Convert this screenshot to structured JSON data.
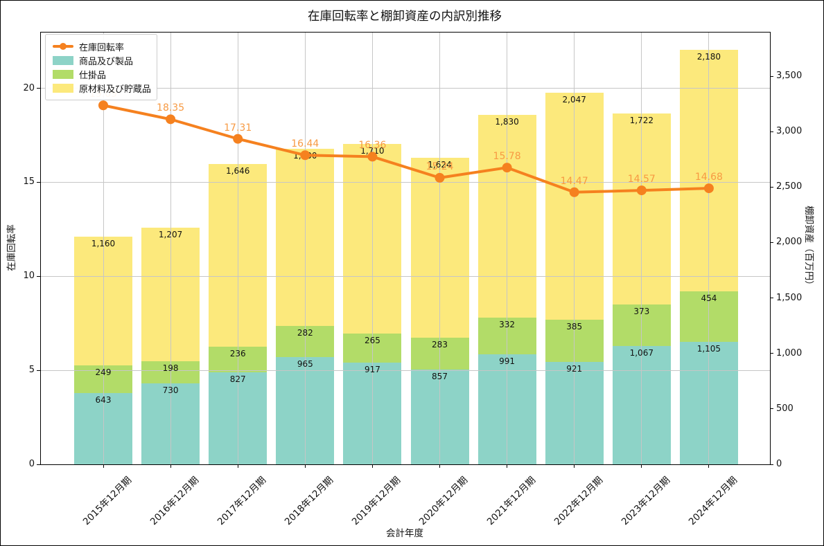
{
  "chart_data": {
    "type": "bar",
    "stacked": true,
    "title": "在庫回転率と棚卸資産の内訳別推移",
    "xlabel": "会計年度",
    "categories": [
      "2015年12月期",
      "2016年12月期",
      "2017年12月期",
      "2018年12月期",
      "2019年12月期",
      "2020年12月期",
      "2021年12月期",
      "2022年12月期",
      "2023年12月期",
      "2024年12月期"
    ],
    "series": [
      {
        "name": "商品及び製品",
        "type": "bar",
        "axis": "right",
        "color": "#8dd3c7",
        "values": [
          643,
          730,
          827,
          965,
          917,
          857,
          991,
          921,
          1067,
          1105
        ]
      },
      {
        "name": "仕掛品",
        "type": "bar",
        "axis": "right",
        "color": "#b2dc68",
        "values": [
          249,
          198,
          236,
          282,
          265,
          283,
          332,
          385,
          373,
          454
        ]
      },
      {
        "name": "原材料及び貯蔵品",
        "type": "bar",
        "axis": "right",
        "color": "#fce97c",
        "values": [
          1160,
          1207,
          1646,
          1600,
          1710,
          1624,
          1830,
          2047,
          1722,
          2180
        ]
      }
    ],
    "line": {
      "name": "在庫回転率",
      "type": "line",
      "axis": "left",
      "color": "#f5811f",
      "label_color": "#f79a43",
      "values": [
        19.09,
        18.35,
        17.31,
        16.44,
        16.36,
        15.24,
        15.78,
        14.47,
        14.57,
        14.68
      ]
    },
    "left_axis": {
      "label": "在庫回転率",
      "ticks": [
        0,
        5,
        10,
        15,
        20
      ],
      "lim": [
        0,
        23
      ]
    },
    "right_axis": {
      "label": "棚卸資産（百万円）",
      "ticks": [
        0,
        500,
        1000,
        1500,
        2000,
        2500,
        3000,
        3500
      ],
      "lim": [
        0,
        3900
      ]
    },
    "grid": true,
    "legend_position": "upper-left",
    "grid_color": "#c6c6c6"
  }
}
